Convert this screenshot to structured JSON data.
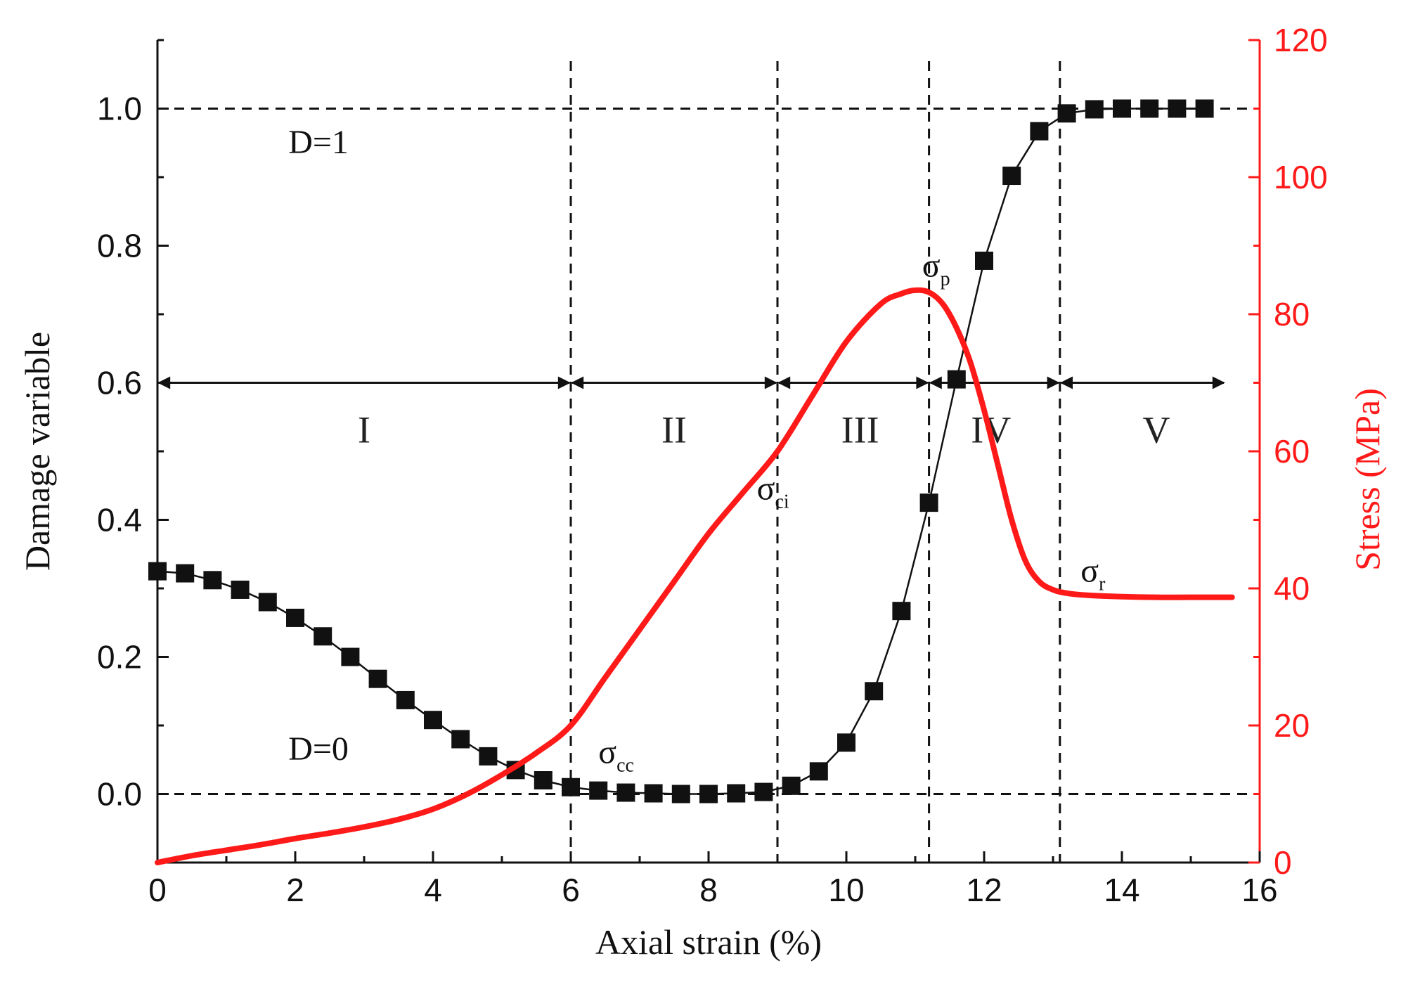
{
  "chart_data": {
    "type": "line",
    "xlabel": "Axial strain (%)",
    "ylabel": "Damage variable",
    "y2label": "Stress (MPa)",
    "xlim": [
      0,
      16
    ],
    "ylim": [
      -0.1,
      1.1
    ],
    "y2lim": [
      0,
      120
    ],
    "xticks": [
      "0",
      "2",
      "4",
      "6",
      "8",
      "10",
      "12",
      "14",
      "16"
    ],
    "yticks": [
      "0.0",
      "0.2",
      "0.4",
      "0.6",
      "0.8",
      "1.0"
    ],
    "y2ticks": [
      "0",
      "20",
      "40",
      "60",
      "80",
      "100",
      "120"
    ],
    "grid": false,
    "series": [
      {
        "axis": "left",
        "color": "#111111",
        "marker": "square",
        "x": [
          0.0,
          0.4,
          0.8,
          1.2,
          1.6,
          2.0,
          2.4,
          2.8,
          3.2,
          3.6,
          4.0,
          4.4,
          4.8,
          5.2,
          5.6,
          6.0,
          6.4,
          6.8,
          7.2,
          7.6,
          8.0,
          8.4,
          8.8,
          9.2,
          9.6,
          10.0,
          10.4,
          10.8,
          11.2,
          11.6,
          12.0,
          12.4,
          12.8,
          13.2,
          13.6,
          14.0,
          14.4,
          14.8,
          15.2
        ],
        "y": [
          0.325,
          0.322,
          0.312,
          0.298,
          0.28,
          0.257,
          0.23,
          0.2,
          0.168,
          0.137,
          0.108,
          0.08,
          0.055,
          0.035,
          0.02,
          0.01,
          0.005,
          0.002,
          0.001,
          0.0,
          0.0,
          0.001,
          0.003,
          0.012,
          0.033,
          0.075,
          0.15,
          0.267,
          0.425,
          0.605,
          0.778,
          0.902,
          0.967,
          0.993,
          0.999,
          1.0,
          1.0,
          1.0,
          1.0
        ]
      },
      {
        "axis": "right",
        "color": "#ff1a1a",
        "x": [
          0.0,
          0.5,
          1.0,
          1.5,
          2.0,
          2.5,
          3.0,
          3.5,
          4.0,
          4.5,
          5.0,
          5.5,
          6.0,
          6.5,
          7.0,
          7.5,
          8.0,
          8.5,
          9.0,
          9.5,
          10.0,
          10.5,
          10.8,
          11.0,
          11.2,
          11.4,
          11.6,
          11.8,
          12.0,
          12.2,
          12.4,
          12.6,
          12.8,
          13.0,
          13.2,
          13.5,
          14.0,
          14.5,
          15.0,
          15.6
        ],
        "y": [
          0.0,
          1.0,
          1.8,
          2.6,
          3.5,
          4.3,
          5.2,
          6.3,
          7.8,
          10.0,
          12.8,
          16.0,
          20.0,
          27.0,
          34.0,
          41.0,
          48.0,
          54.0,
          60.0,
          68.0,
          76.0,
          81.5,
          83.0,
          83.5,
          83.2,
          81.5,
          78.0,
          73.0,
          66.0,
          58.0,
          50.0,
          44.0,
          41.0,
          39.8,
          39.3,
          39.0,
          38.8,
          38.7,
          38.7,
          38.7
        ]
      }
    ],
    "reference_lines": {
      "horizontal": [
        0.0,
        1.0
      ],
      "vertical": [
        6.0,
        9.0,
        11.2,
        13.1
      ]
    },
    "stage_arrow_y": 0.6,
    "stages": [
      "I",
      "II",
      "III",
      "IV",
      "V"
    ],
    "stage_centers": [
      3.0,
      7.5,
      10.2,
      12.1,
      14.5
    ],
    "annotations": [
      {
        "text": "D=1",
        "x": 1.9,
        "y": 0.935
      },
      {
        "text": "D=0",
        "x": 1.9,
        "y": 0.05
      },
      {
        "text": "σ",
        "sub": "p",
        "x": 11.1,
        "y2": 85.5
      },
      {
        "text": "σ",
        "sub": "ci",
        "x": 8.7,
        "y2": 53.0
      },
      {
        "text": "σ",
        "sub": "cc",
        "x": 6.4,
        "y2": 14.5
      },
      {
        "text": "σ",
        "sub": "r",
        "x": 13.4,
        "y2": 41.0
      }
    ]
  }
}
